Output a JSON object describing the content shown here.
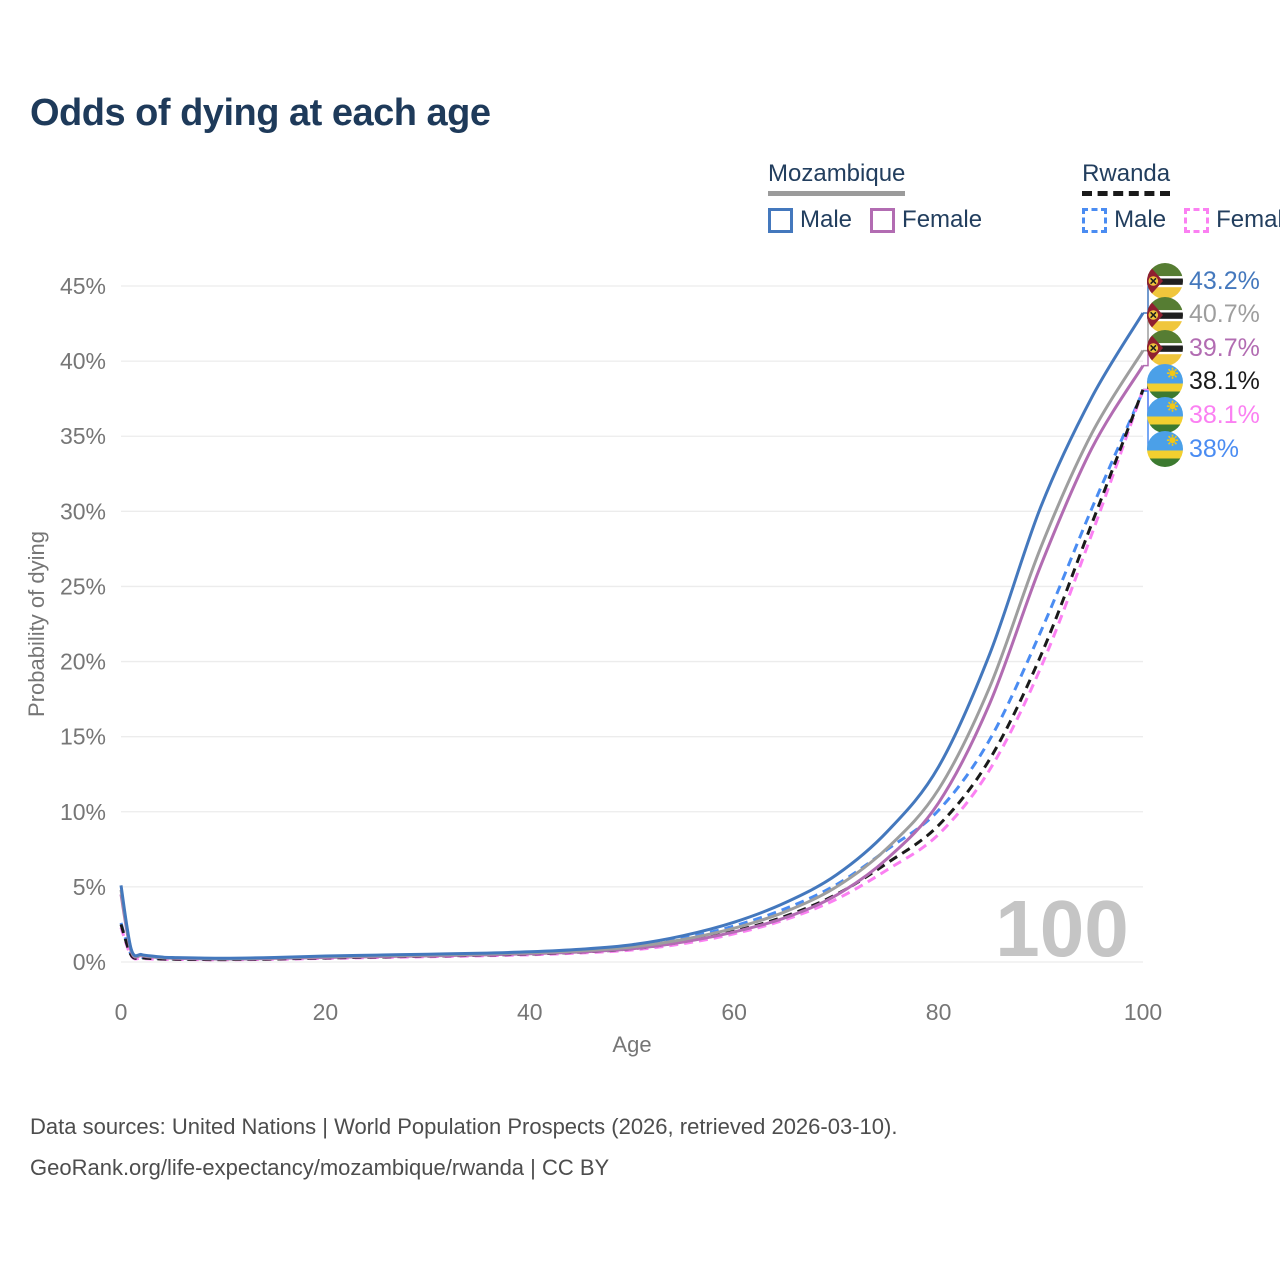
{
  "title": "Odds of dying at each age",
  "legend": {
    "groups": [
      {
        "name": "Mozambique",
        "underline_style": "solid",
        "underline_color": "#9b9b9b",
        "items": [
          {
            "label": "Male",
            "color": "#4478bd",
            "dashed": false
          },
          {
            "label": "Female",
            "color": "#b26cb2",
            "dashed": false
          }
        ]
      },
      {
        "name": "Rwanda",
        "underline_style": "dashed",
        "underline_color": "#1a1a1a",
        "items": [
          {
            "label": "Male",
            "color": "#4a8cf2",
            "dashed": true
          },
          {
            "label": "Female",
            "color": "#fb80f2",
            "dashed": true
          }
        ]
      }
    ]
  },
  "chart_data": {
    "type": "line",
    "title": "Odds of dying at each age",
    "xlabel": "Age",
    "ylabel": "Probability of dying",
    "xlim": [
      0,
      100
    ],
    "ylim": [
      0,
      45
    ],
    "grid": true,
    "x_ticks": [
      0,
      20,
      40,
      60,
      80,
      100
    ],
    "y_ticks": [
      {
        "value": 0,
        "label": "0%"
      },
      {
        "value": 5,
        "label": "5%"
      },
      {
        "value": 10,
        "label": "10%"
      },
      {
        "value": 15,
        "label": "15%"
      },
      {
        "value": 20,
        "label": "20%"
      },
      {
        "value": 25,
        "label": "25%"
      },
      {
        "value": 30,
        "label": "30%"
      },
      {
        "value": 35,
        "label": "35%"
      },
      {
        "value": 40,
        "label": "40%"
      },
      {
        "value": 45,
        "label": "45%"
      }
    ],
    "watermark": "100",
    "x": [
      0,
      1,
      2,
      3,
      4,
      5,
      10,
      15,
      20,
      25,
      30,
      35,
      40,
      45,
      50,
      55,
      60,
      65,
      70,
      75,
      80,
      85,
      90,
      95,
      100
    ],
    "series": [
      {
        "name": "Mozambique Male",
        "country": "Mozambique",
        "sex": "male",
        "color": "#4478bd",
        "dashed": false,
        "flag": "mozambique-flag-icon",
        "end_label": "43.2%",
        "values": [
          5.1,
          0.85,
          0.5,
          0.4,
          0.33,
          0.3,
          0.25,
          0.3,
          0.4,
          0.46,
          0.52,
          0.58,
          0.68,
          0.85,
          1.15,
          1.75,
          2.65,
          3.95,
          5.8,
          8.7,
          13.0,
          20.5,
          30.3,
          37.6,
          43.2
        ]
      },
      {
        "name": "Mozambique Both sexes",
        "country": "Mozambique",
        "sex": "both",
        "color": "#9e9e9e",
        "dashed": false,
        "flag": "mozambique-flag-icon",
        "end_label": "40.7%",
        "values": [
          4.8,
          0.78,
          0.46,
          0.36,
          0.3,
          0.27,
          0.22,
          0.27,
          0.35,
          0.41,
          0.46,
          0.52,
          0.61,
          0.75,
          1.0,
          1.5,
          2.25,
          3.35,
          5.0,
          7.6,
          11.5,
          18.3,
          27.6,
          35.2,
          40.7
        ]
      },
      {
        "name": "Mozambique Female",
        "country": "Mozambique",
        "sex": "female",
        "color": "#b26cb2",
        "dashed": false,
        "flag": "mozambique-flag-icon",
        "end_label": "39.7%",
        "values": [
          4.5,
          0.7,
          0.42,
          0.33,
          0.28,
          0.25,
          0.2,
          0.24,
          0.3,
          0.36,
          0.41,
          0.47,
          0.55,
          0.67,
          0.88,
          1.33,
          2.0,
          2.95,
          4.45,
          6.9,
          10.6,
          17.2,
          26.4,
          34.2,
          39.7
        ]
      },
      {
        "name": "Rwanda Both sexes",
        "country": "Rwanda",
        "sex": "both",
        "color": "#1a1a1a",
        "dashed": true,
        "flag": "rwanda-flag-icon",
        "end_label": "38.1%",
        "values": [
          2.5,
          0.45,
          0.28,
          0.23,
          0.2,
          0.19,
          0.16,
          0.2,
          0.27,
          0.33,
          0.39,
          0.45,
          0.53,
          0.66,
          0.88,
          1.35,
          2.05,
          3.05,
          4.5,
          6.6,
          9.1,
          13.5,
          20.4,
          29.2,
          38.1
        ]
      },
      {
        "name": "Rwanda Female",
        "country": "Rwanda",
        "sex": "female",
        "color": "#fb80f2",
        "dashed": true,
        "flag": "rwanda-flag-icon",
        "end_label": "38.1%",
        "values": [
          2.3,
          0.4,
          0.25,
          0.2,
          0.18,
          0.17,
          0.15,
          0.18,
          0.24,
          0.3,
          0.35,
          0.41,
          0.48,
          0.6,
          0.8,
          1.22,
          1.88,
          2.82,
          4.18,
          6.15,
          8.5,
          12.8,
          19.6,
          28.5,
          38.1
        ]
      },
      {
        "name": "Rwanda Male",
        "country": "Rwanda",
        "sex": "male",
        "color": "#4a8cf2",
        "dashed": true,
        "flag": "rwanda-flag-icon",
        "end_label": "38%",
        "values": [
          2.6,
          0.5,
          0.31,
          0.26,
          0.23,
          0.22,
          0.18,
          0.23,
          0.31,
          0.39,
          0.46,
          0.53,
          0.63,
          0.79,
          1.05,
          1.58,
          2.4,
          3.55,
          5.15,
          7.5,
          10.1,
          14.8,
          22.0,
          30.2,
          38.0
        ]
      }
    ],
    "grid_color": "#ececec",
    "axis_text_color": "#767676",
    "watermark_color": "#c5c5c5"
  },
  "footer": {
    "line1": "Data sources: United Nations | World Population Prospects (2026, retrieved 2026-03-10).",
    "line2": "GeoRank.org/life-expectancy/mozambique/rwanda | CC BY"
  }
}
